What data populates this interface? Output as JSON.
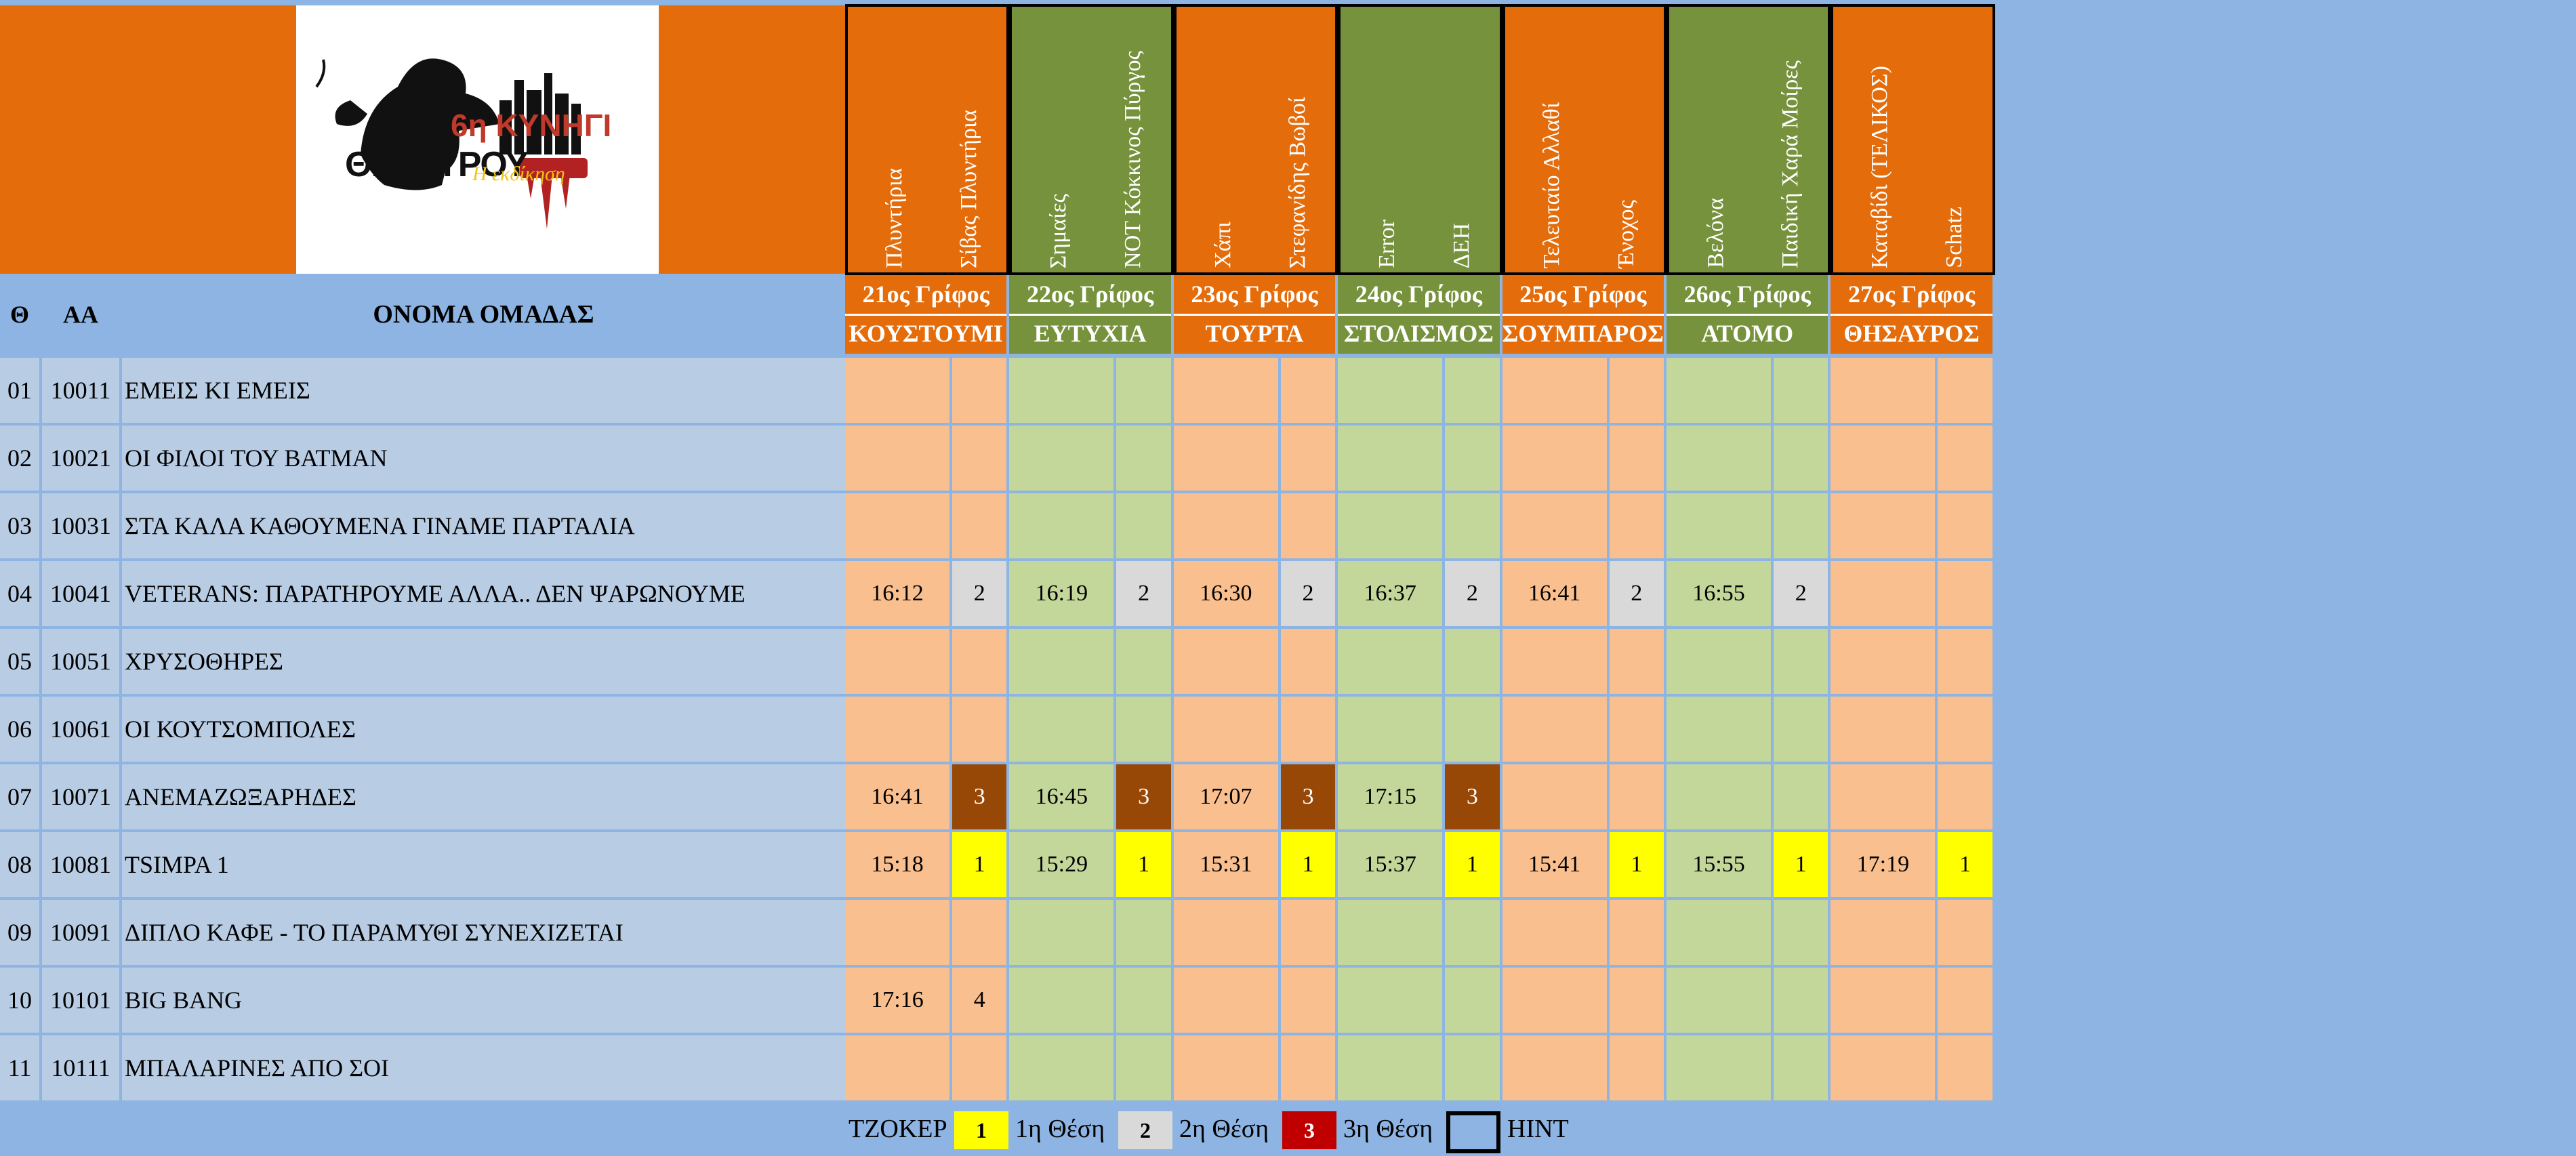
{
  "header": {
    "col_theta": "Θ",
    "col_aa": "ΑΑ",
    "col_name": "ΟΝΟΜΑ ΟΜΑΔΑΣ"
  },
  "logo": {
    "line1": "6η ΚΥΝΗΓΙ",
    "line2": "ΘΗΣΑΥΡΟΥ",
    "tagline": "Η εκδίκηση"
  },
  "groups": [
    {
      "grip": "21ος Γρίφος",
      "word": "ΚΟΥΣΤΟΥΜΙ",
      "color": "orange",
      "labels": [
        "Πλυντήρια",
        "Σίβας Πλυντήρια"
      ]
    },
    {
      "grip": "22ος Γρίφος",
      "word": "ΕΥΤΥΧΙΑ",
      "color": "green",
      "labels": [
        "Σημαίες",
        "ΝΟΤ Κόκκινος Πύργος"
      ]
    },
    {
      "grip": "23ος Γρίφος",
      "word": "ΤΟΥΡΤΑ",
      "color": "orange",
      "labels": [
        "Χάπι",
        "Στεφανίδης Βωβοί"
      ]
    },
    {
      "grip": "24ος Γρίφος",
      "word": "ΣΤΟΛΙΣΜΟΣ",
      "color": "green",
      "labels": [
        "Error",
        "ΔΕΗ"
      ]
    },
    {
      "grip": "25ος Γρίφος",
      "word": "ΣΟΥΜΠΑΡΟΣ",
      "color": "orange",
      "labels": [
        "Τελευταίο Αλλαθί",
        "Ένοχος"
      ]
    },
    {
      "grip": "26ος Γρίφος",
      "word": "ΑΤΟΜΟ",
      "color": "green",
      "labels": [
        "Βελόνα",
        "Παιδική Χαρά Μοίρες"
      ]
    },
    {
      "grip": "27ος Γρίφος",
      "word": "ΘΗΣΑΥΡΟΣ",
      "color": "orange",
      "labels": [
        "Καταβίδι (ΤΕΛΙΚΟΣ)",
        "Schatz"
      ]
    }
  ],
  "rows": [
    {
      "theta": "01",
      "aa": "10011",
      "name": "ΕΜΕΙΣ ΚΙ ΕΜΕΙΣ",
      "cells": []
    },
    {
      "theta": "02",
      "aa": "10021",
      "name": "ΟΙ ΦΙΛΟΙ ΤΟΥ BATMAN",
      "cells": []
    },
    {
      "theta": "03",
      "aa": "10031",
      "name": "ΣΤΑ ΚΑΛΑ ΚΑΘΟΥΜΕΝΑ ΓΙΝΑΜΕ ΠΑΡΤΑΛΙΑ",
      "cells": []
    },
    {
      "theta": "04",
      "aa": "10041",
      "name": "VETERANS: ΠΑΡΑΤΗΡΟΥΜΕ ΑΛΛΑ.. ΔΕΝ ΨΑΡΩΝΟΥΜΕ",
      "cells": [
        [
          "16:12",
          "2"
        ],
        [
          "16:19",
          "2"
        ],
        [
          "16:30",
          "2"
        ],
        [
          "16:37",
          "2"
        ],
        [
          "16:41",
          "2"
        ],
        [
          "16:55",
          "2"
        ]
      ]
    },
    {
      "theta": "05",
      "aa": "10051",
      "name": "ΧΡΥΣΟΘΗΡΕΣ",
      "cells": []
    },
    {
      "theta": "06",
      "aa": "10061",
      "name": "ΟΙ ΚΟΥΤΣΟΜΠΟΛΕΣ",
      "cells": []
    },
    {
      "theta": "07",
      "aa": "10071",
      "name": "ΑΝΕΜΑΖΩΞΑΡΗΔΕΣ",
      "cells": [
        [
          "16:41",
          "3"
        ],
        [
          "16:45",
          "3"
        ],
        [
          "17:07",
          "3"
        ],
        [
          "17:15",
          "3"
        ]
      ]
    },
    {
      "theta": "08",
      "aa": "10081",
      "name": "TSIMPA 1",
      "cells": [
        [
          "15:18",
          "1"
        ],
        [
          "15:29",
          "1"
        ],
        [
          "15:31",
          "1"
        ],
        [
          "15:37",
          "1"
        ],
        [
          "15:41",
          "1"
        ],
        [
          "15:55",
          "1"
        ],
        [
          "17:19",
          "1"
        ]
      ]
    },
    {
      "theta": "09",
      "aa": "10091",
      "name": "ΔΙΠΛΟ ΚΑΦΕ - ΤΟ ΠΑΡΑΜΥΘΙ ΣΥΝΕΧΙΖΕΤΑΙ",
      "cells": []
    },
    {
      "theta": "10",
      "aa": "10101",
      "name": "BIG BANG",
      "cells": [
        [
          "17:16",
          "4"
        ]
      ]
    },
    {
      "theta": "11",
      "aa": "10111",
      "name": "ΜΠΑΛΑΡΙΝΕΣ ΑΠΟ ΣΟΙ",
      "cells": []
    }
  ],
  "legend": {
    "tzoker": "ΤΖΟΚΕΡ",
    "items": [
      {
        "badge": "1",
        "label": "1η Θέση"
      },
      {
        "badge": "2",
        "label": "2η Θέση"
      },
      {
        "badge": "3",
        "label": "3η Θέση"
      },
      {
        "badge": "",
        "label": "HINT"
      }
    ]
  },
  "colors": {
    "orange": "#e46c0a",
    "green": "#76923c",
    "peach": "#fabf8f",
    "light_green": "#c4d79b",
    "first": "#ffff00",
    "second": "#d9d9d9",
    "third": "#974706",
    "third_legend": "#c00000",
    "name_bg": "#b8cce4",
    "header_bg": "#8db4e2"
  }
}
